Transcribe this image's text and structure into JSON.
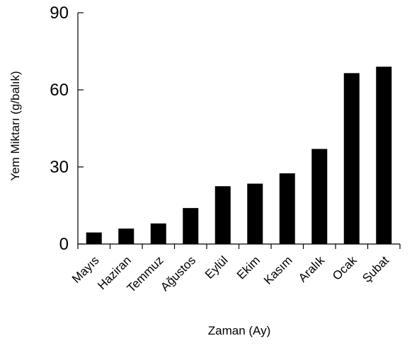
{
  "chart_data": {
    "type": "bar",
    "title": "",
    "xlabel": "Zaman (Ay)",
    "ylabel": "Yem Miktarı (g/balık)",
    "categories": [
      "Mayıs",
      "Haziran",
      "Temmuz",
      "Ağustos",
      "Eylül",
      "Ekim",
      "Kasım",
      "Aralık",
      "Ocak",
      "Şubat"
    ],
    "values": [
      4.5,
      6,
      8,
      14,
      22.5,
      23.5,
      27.5,
      37,
      66.5,
      69
    ],
    "yticks": [
      0,
      30,
      60,
      90
    ],
    "ylim": [
      0,
      90
    ],
    "grid": false,
    "legend": "none",
    "bar_color": "#000000"
  }
}
